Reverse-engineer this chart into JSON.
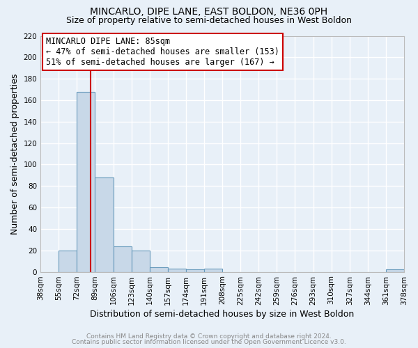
{
  "title": "MINCARLO, DIPE LANE, EAST BOLDON, NE36 0PH",
  "subtitle": "Size of property relative to semi-detached houses in West Boldon",
  "xlabel": "Distribution of semi-detached houses by size in West Boldon",
  "ylabel": "Number of semi-detached properties",
  "bin_labels": [
    "38sqm",
    "55sqm",
    "72sqm",
    "89sqm",
    "106sqm",
    "123sqm",
    "140sqm",
    "157sqm",
    "174sqm",
    "191sqm",
    "208sqm",
    "225sqm",
    "242sqm",
    "259sqm",
    "276sqm",
    "293sqm",
    "310sqm",
    "327sqm",
    "344sqm",
    "361sqm",
    "378sqm"
  ],
  "bar_values": [
    0,
    20,
    168,
    88,
    24,
    20,
    4,
    3,
    2,
    3,
    0,
    0,
    0,
    0,
    0,
    0,
    0,
    0,
    0,
    2,
    0
  ],
  "bin_edges": [
    38,
    55,
    72,
    89,
    106,
    123,
    140,
    157,
    174,
    191,
    208,
    225,
    242,
    259,
    276,
    293,
    310,
    327,
    344,
    361,
    378
  ],
  "bar_color": "#c8d8e8",
  "bar_edge_color": "#6699bb",
  "vline_x": 85,
  "vline_color": "#cc0000",
  "ylim": [
    0,
    220
  ],
  "yticks": [
    0,
    20,
    40,
    60,
    80,
    100,
    120,
    140,
    160,
    180,
    200,
    220
  ],
  "annotation_title": "MINCARLO DIPE LANE: 85sqm",
  "annotation_line1": "← 47% of semi-detached houses are smaller (153)",
  "annotation_line2": "51% of semi-detached houses are larger (167) →",
  "footer1": "Contains HM Land Registry data © Crown copyright and database right 2024.",
  "footer2": "Contains public sector information licensed under the Open Government Licence v3.0.",
  "background_color": "#e8f0f8",
  "plot_bg_color": "#e8f0f8",
  "grid_color": "#ffffff",
  "title_fontsize": 10,
  "subtitle_fontsize": 9,
  "axis_label_fontsize": 9,
  "tick_fontsize": 7.5,
  "annotation_fontsize": 8.5,
  "footer_fontsize": 6.5
}
